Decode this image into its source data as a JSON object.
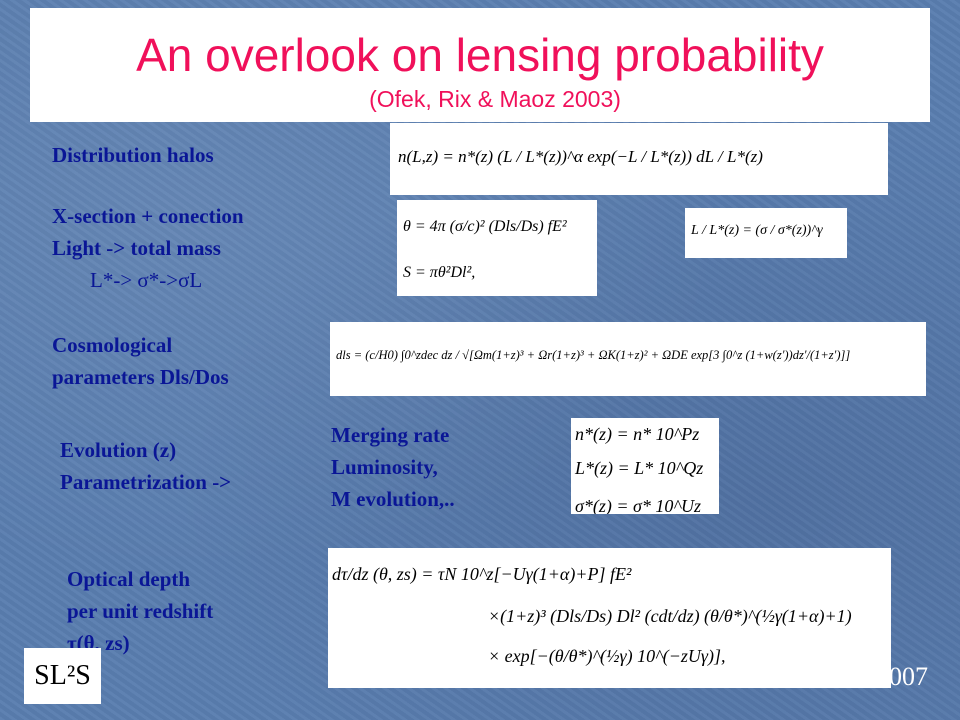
{
  "slide": {
    "title": "An overlook on lensing probability",
    "subtitle": "(Ofek, Rix & Maoz 2003)",
    "logo": "SL²S",
    "footer_year": "2007"
  },
  "labels": {
    "distribution": "Distribution halos",
    "xsection": "X-section + conection",
    "light_mass": "Light -> total mass",
    "sigma_chain": "L*-> σ*->σL",
    "cosmo1": "Cosmological",
    "cosmo2": "parameters Dls/Dos",
    "evolution": "Evolution (z)",
    "parametrization": "Parametrization   ->",
    "merging": "Merging rate",
    "luminosity": "Luminosity,",
    "m_evolution": "M evolution,..",
    "optical1": "Optical depth",
    "optical2": "per unit redshift",
    "optical3": "τ(θ, zs)"
  },
  "equations": {
    "halo_distribution": "n(L,z) = n*(z) (L / L*(z))^α exp(−L / L*(z)) dL / L*(z)",
    "theta": "θ = 4π (σ/c)² (Dls/Ds) fE²",
    "cross_section": "S = πθ²Dl²,",
    "faber_jackson": "L / L*(z) = (σ / σ*(z))^γ",
    "distance": "dls = (c/H0) ∫0^zdec dz / √[Ωm(1+z)³ + Ωr(1+z)³ + ΩK(1+z)² + ΩDE exp[3 ∫0^z (1+w(z'))dz'/(1+z')]]",
    "evo_n": "n*(z) = n* 10^Pz",
    "evo_L": "L*(z) = L* 10^Qz",
    "evo_sigma": "σ*(z) = σ* 10^Uz",
    "tau_line1": "dτ/dz (θ, zs) =   τN 10^z[−Uγ(1+α)+P] fE²",
    "tau_line2": "×(1+z)³ (Dls/Ds) Dl² (cdt/dz) (θ/θ*)^(½γ(1+α)+1)",
    "tau_line3": "× exp[−(θ/θ*)^(½γ) 10^(−zUγ)],"
  }
}
